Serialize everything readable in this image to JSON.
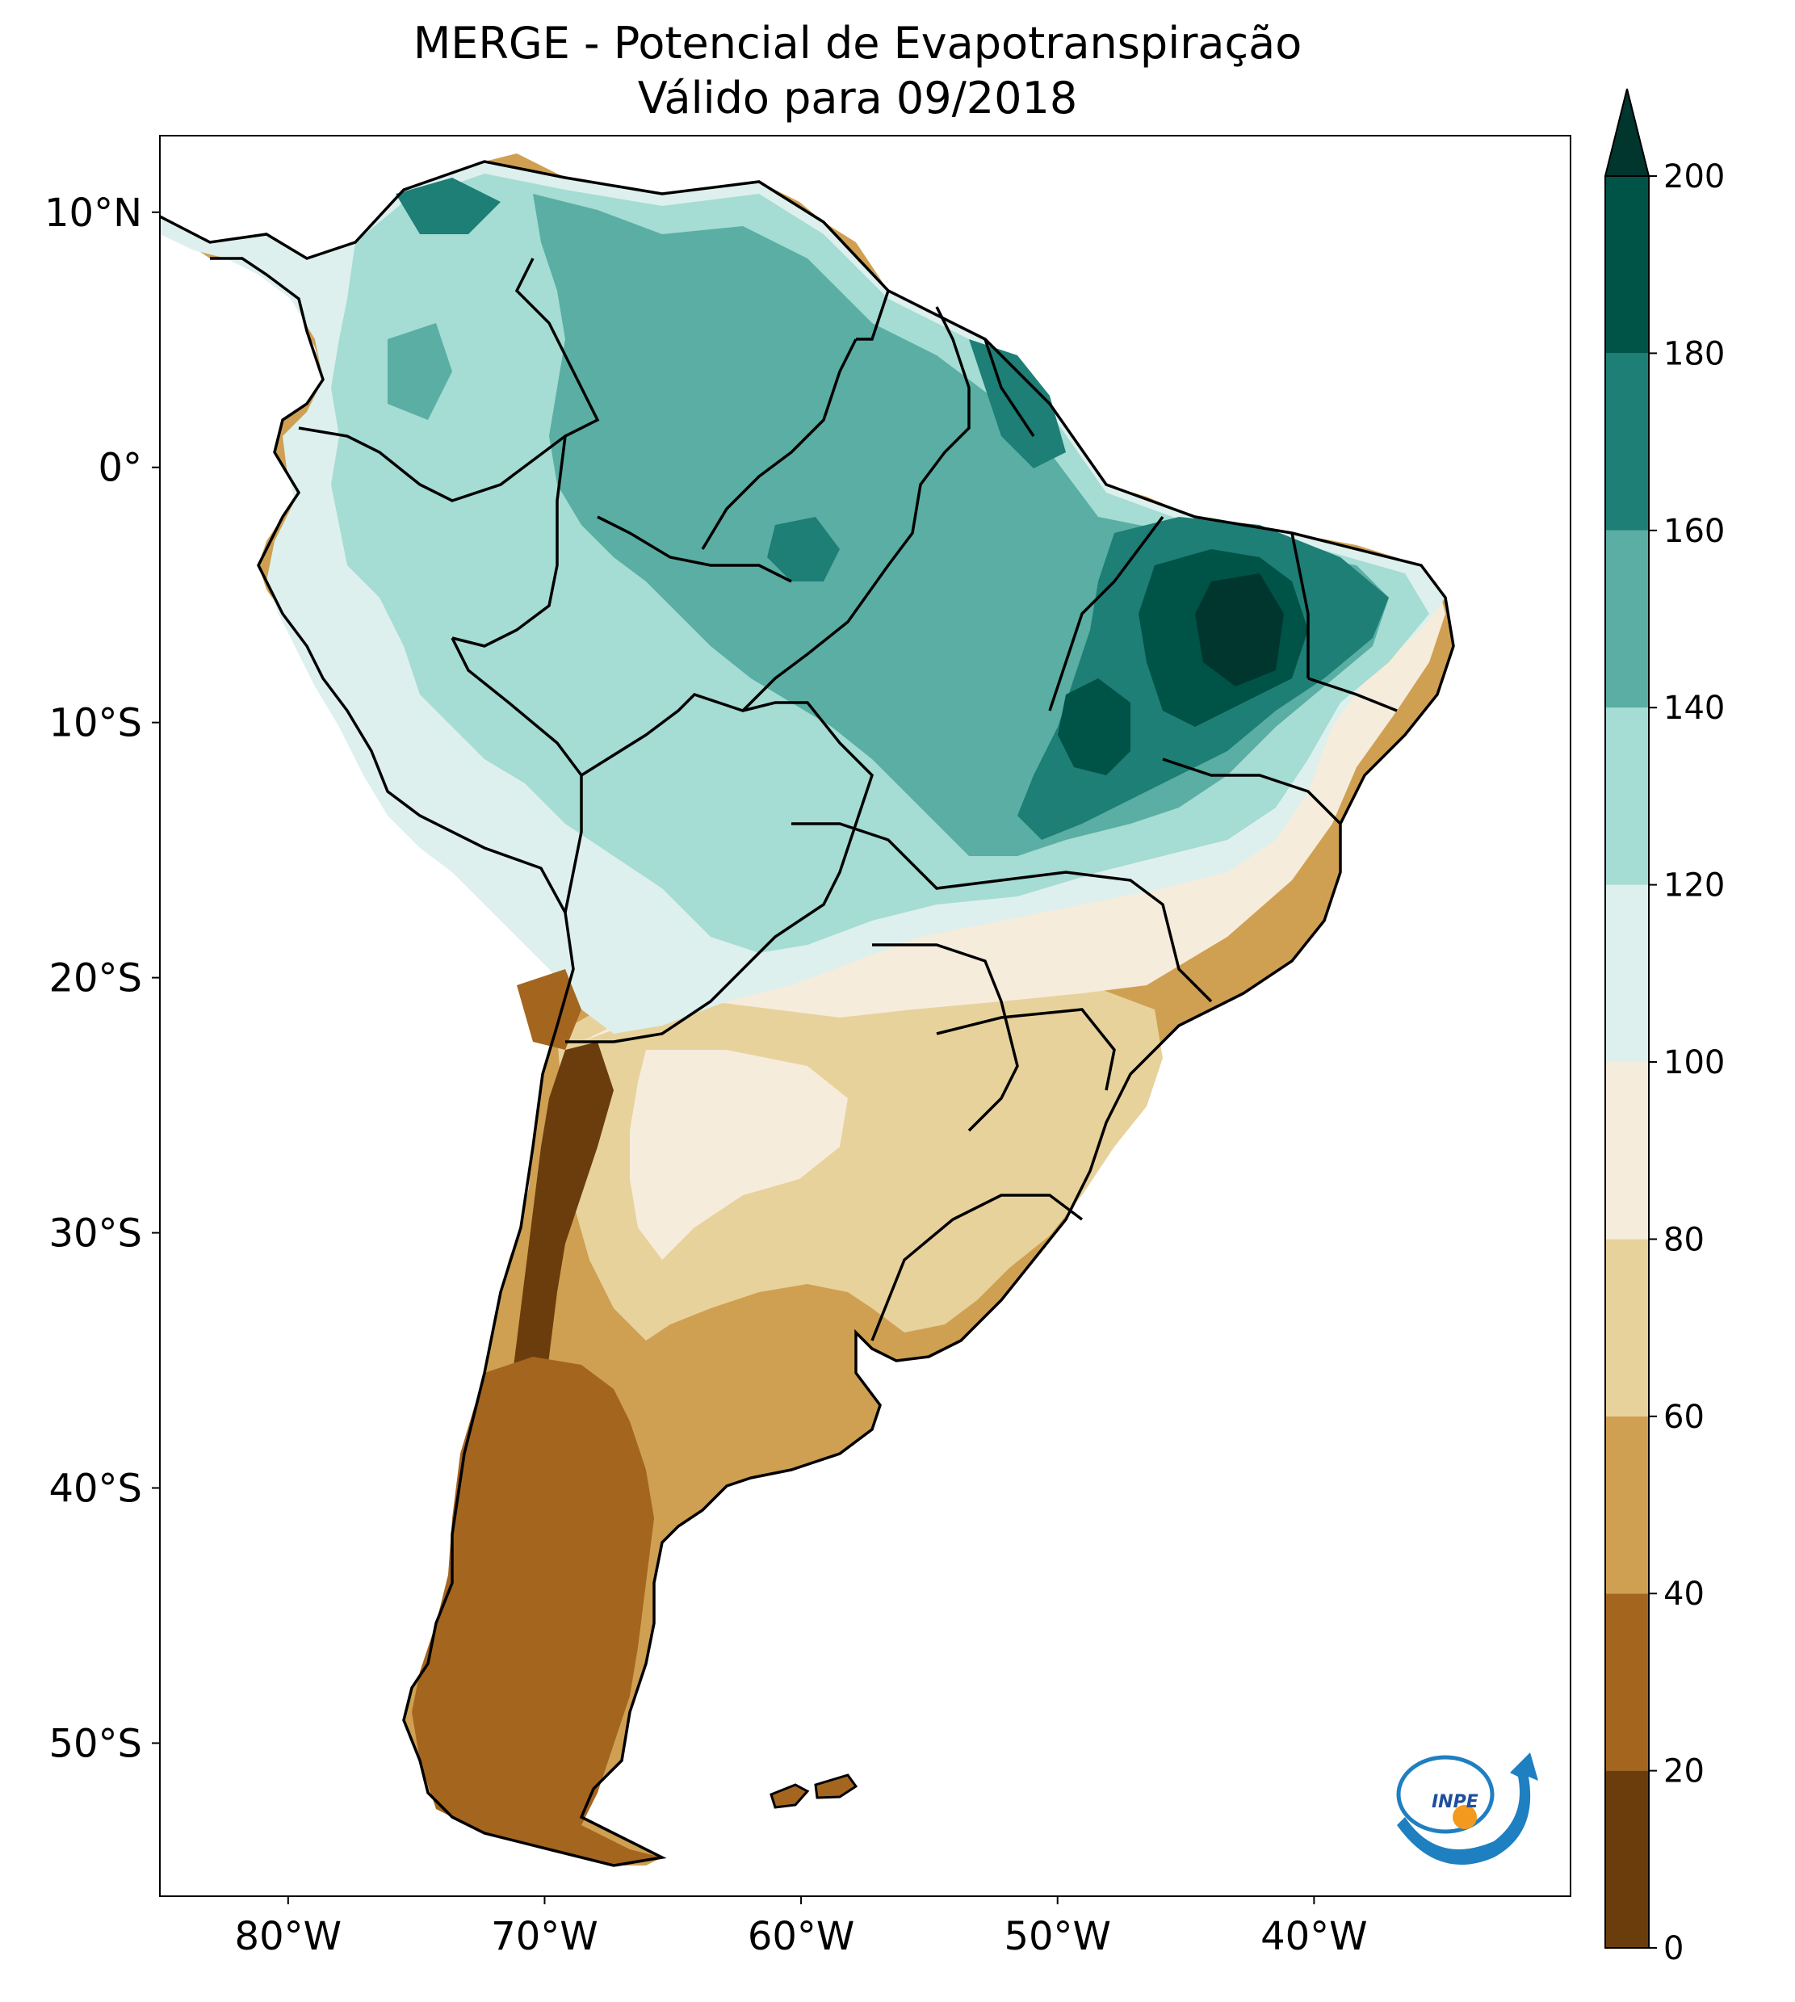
{
  "title": {
    "line1": "MERGE - Potencial de Evapotranspiração",
    "line2": "Válido para 09/2018"
  },
  "map": {
    "region": "South America",
    "variable": "Potencial de Evapotranspiração",
    "lon_range": [
      -85,
      -30
    ],
    "lat_range": [
      -56,
      13
    ],
    "lat_ticks": [
      {
        "value": 10,
        "label": "10°N"
      },
      {
        "value": 0,
        "label": "0°"
      },
      {
        "value": -10,
        "label": "10°S"
      },
      {
        "value": -20,
        "label": "20°S"
      },
      {
        "value": -30,
        "label": "30°S"
      },
      {
        "value": -40,
        "label": "40°S"
      },
      {
        "value": -50,
        "label": "50°S"
      }
    ],
    "lon_ticks": [
      {
        "value": -80,
        "label": "80°W"
      },
      {
        "value": -70,
        "label": "70°W"
      },
      {
        "value": -60,
        "label": "60°W"
      },
      {
        "value": -50,
        "label": "50°W"
      },
      {
        "value": -40,
        "label": "40°W"
      }
    ]
  },
  "colorbar": {
    "min": 0,
    "max": 200,
    "extend": "max",
    "ticks": [
      0,
      20,
      40,
      60,
      80,
      100,
      120,
      140,
      160,
      180,
      200
    ],
    "bins": [
      {
        "from": 0,
        "to": 20,
        "color": "#6b3d0c"
      },
      {
        "from": 20,
        "to": 40,
        "color": "#a4651f"
      },
      {
        "from": 40,
        "to": 60,
        "color": "#cfa052"
      },
      {
        "from": 60,
        "to": 80,
        "color": "#e8d29b"
      },
      {
        "from": 80,
        "to": 100,
        "color": "#f5ecdc"
      },
      {
        "from": 100,
        "to": 120,
        "color": "#ddf0ee"
      },
      {
        "from": 120,
        "to": 140,
        "color": "#a5dcd3"
      },
      {
        "from": 140,
        "to": 160,
        "color": "#5aaea3"
      },
      {
        "from": 160,
        "to": 180,
        "color": "#1d7f76"
      },
      {
        "from": 180,
        "to": 200,
        "color": "#005347"
      }
    ],
    "extend_color": "#01362f"
  },
  "logo": {
    "text": "INPE"
  }
}
